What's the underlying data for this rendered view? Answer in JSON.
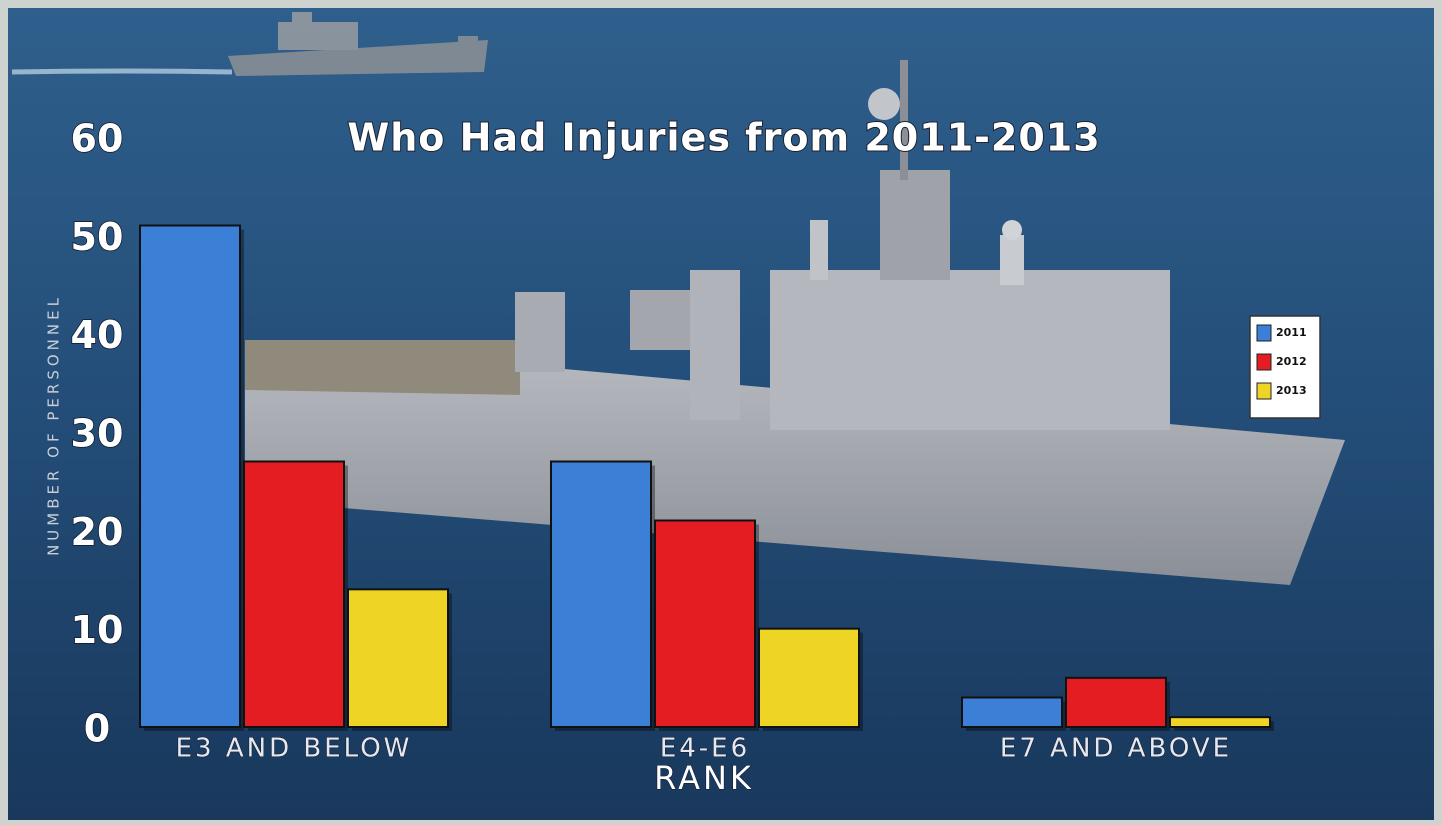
{
  "chart_data": {
    "type": "bar",
    "title": "Who Had Injuries from 2011-2013",
    "y_label": "NUMBER OF PERSONNEL",
    "x_label": "RANK",
    "categories": [
      "E3 AND BELOW",
      "E4-E6",
      "E7 AND ABOVE"
    ],
    "series": [
      {
        "name": "2011",
        "color": "#3b80d6",
        "values": [
          51,
          27,
          3
        ]
      },
      {
        "name": "2012",
        "color": "#e41d22",
        "values": [
          27,
          21,
          5
        ]
      },
      {
        "name": "2013",
        "color": "#eed424",
        "values": [
          14,
          10,
          1
        ]
      }
    ],
    "ylim": [
      0,
      60
    ],
    "yticks": [
      0,
      10,
      20,
      30,
      40,
      50,
      60
    ],
    "legend": "right"
  }
}
